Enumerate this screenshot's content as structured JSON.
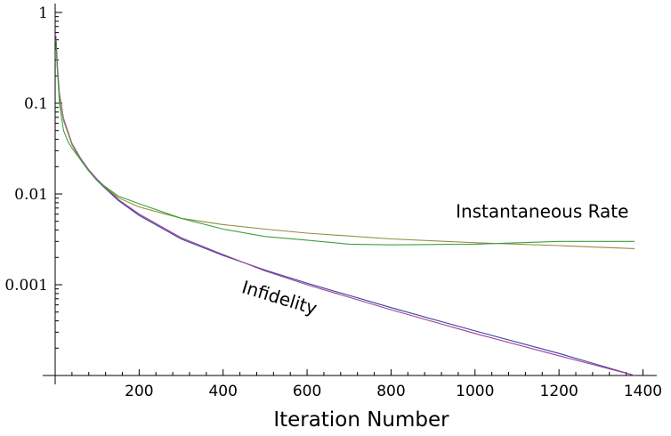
{
  "chart_data": {
    "type": "line",
    "title": "",
    "xlabel": "Iteration Number",
    "ylabel": "",
    "y_scale": "log",
    "xlim": [
      0,
      1400
    ],
    "ylim": [
      0.0001,
      1
    ],
    "x_ticks": [
      200,
      400,
      600,
      800,
      1000,
      1200,
      1400
    ],
    "y_ticks": [
      {
        "value": 1,
        "label": "1"
      },
      {
        "value": 0.1,
        "label": "0.1"
      },
      {
        "value": 0.01,
        "label": "0.01"
      },
      {
        "value": 0.001,
        "label": "0.001"
      }
    ],
    "grid": false,
    "annotations": [
      {
        "text": "Instantaneous Rate",
        "x": 1160,
        "y": 0.0055
      },
      {
        "text": "Infidelity",
        "x": 530,
        "y": 0.00062,
        "rotation": 17
      }
    ],
    "series": [
      {
        "color": "#3f3f9f",
        "points": [
          [
            2,
            0.5
          ],
          [
            5,
            0.25
          ],
          [
            10,
            0.12
          ],
          [
            20,
            0.065
          ],
          [
            40,
            0.035
          ],
          [
            60,
            0.024
          ],
          [
            80,
            0.018
          ],
          [
            100,
            0.014
          ],
          [
            150,
            0.0085
          ],
          [
            200,
            0.0058
          ],
          [
            300,
            0.0032
          ],
          [
            400,
            0.0021
          ],
          [
            500,
            0.00145
          ],
          [
            600,
            0.00104
          ],
          [
            800,
            0.00056
          ],
          [
            1000,
            0.00031
          ],
          [
            1200,
            0.000175
          ],
          [
            1380,
            0.0001
          ]
        ]
      },
      {
        "color": "#9f3f9f",
        "points": [
          [
            2,
            0.55
          ],
          [
            5,
            0.27
          ],
          [
            10,
            0.13
          ],
          [
            20,
            0.068
          ],
          [
            40,
            0.036
          ],
          [
            60,
            0.025
          ],
          [
            80,
            0.0185
          ],
          [
            100,
            0.0145
          ],
          [
            150,
            0.0087
          ],
          [
            200,
            0.006
          ],
          [
            300,
            0.0033
          ],
          [
            400,
            0.00215
          ],
          [
            500,
            0.00142
          ],
          [
            600,
            0.001
          ],
          [
            800,
            0.00053
          ],
          [
            1000,
            0.00029
          ],
          [
            1200,
            0.000165
          ],
          [
            1380,
            0.0001
          ]
        ]
      },
      {
        "color": "#8f8f3f",
        "points": [
          [
            2,
            0.5
          ],
          [
            5,
            0.25
          ],
          [
            10,
            0.12
          ],
          [
            20,
            0.065
          ],
          [
            40,
            0.035
          ],
          [
            60,
            0.024
          ],
          [
            80,
            0.018
          ],
          [
            100,
            0.014
          ],
          [
            150,
            0.0091
          ],
          [
            200,
            0.0072
          ],
          [
            300,
            0.0054
          ],
          [
            400,
            0.0046
          ],
          [
            500,
            0.0041
          ],
          [
            600,
            0.0037
          ],
          [
            800,
            0.0032
          ],
          [
            1000,
            0.0029
          ],
          [
            1200,
            0.0027
          ],
          [
            1380,
            0.0025
          ]
        ]
      },
      {
        "color": "#3f9f3f",
        "points": [
          [
            2,
            0.5
          ],
          [
            5,
            0.25
          ],
          [
            10,
            0.1
          ],
          [
            20,
            0.05
          ],
          [
            30,
            0.038
          ],
          [
            40,
            0.032
          ],
          [
            60,
            0.024
          ],
          [
            80,
            0.018
          ],
          [
            100,
            0.014
          ],
          [
            150,
            0.0095
          ],
          [
            200,
            0.0078
          ],
          [
            300,
            0.0054
          ],
          [
            400,
            0.0041
          ],
          [
            500,
            0.0034
          ],
          [
            600,
            0.0031
          ],
          [
            700,
            0.0028
          ],
          [
            800,
            0.00275
          ],
          [
            1000,
            0.0028
          ],
          [
            1200,
            0.003
          ],
          [
            1380,
            0.003
          ]
        ]
      }
    ]
  }
}
